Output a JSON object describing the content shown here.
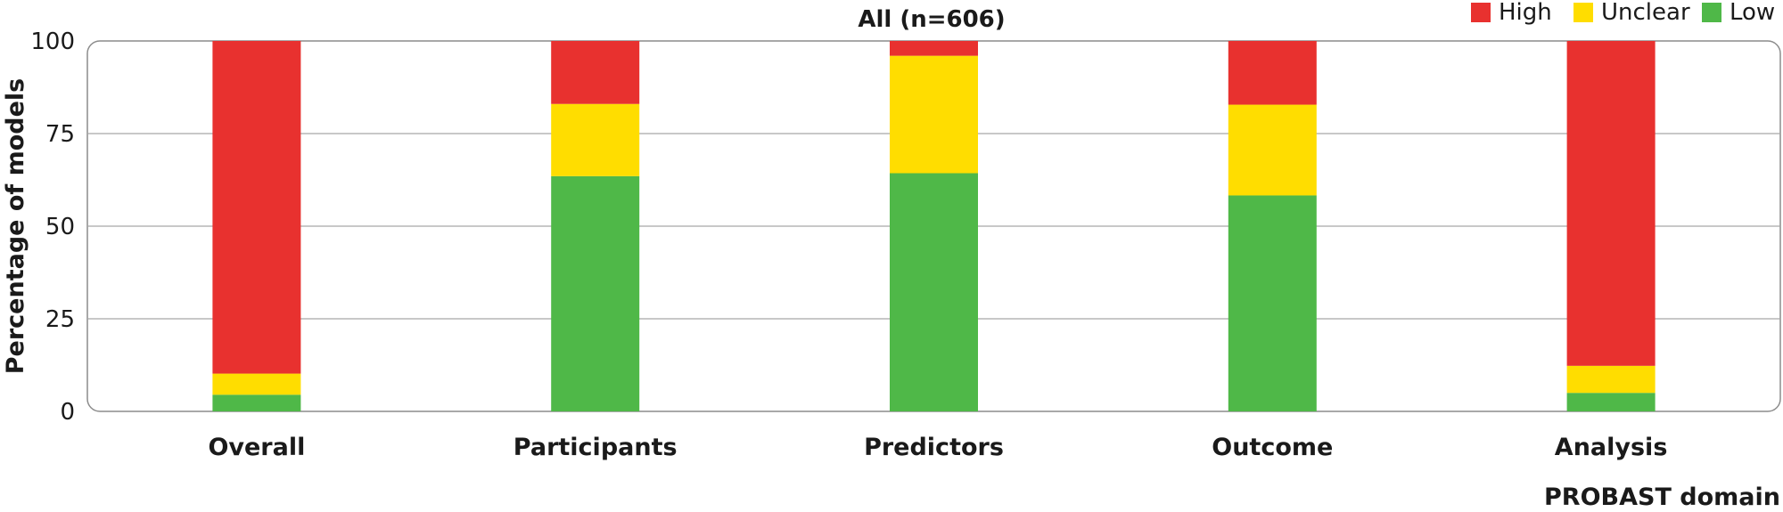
{
  "chart_data": {
    "type": "bar",
    "stacked": true,
    "title": "All (n=606)",
    "xlabel": "PROBAST domain",
    "ylabel": "Percentage of models",
    "categories": [
      "Overall",
      "Participants",
      "Predictors",
      "Outcome",
      "Analysis"
    ],
    "series": [
      {
        "name": "Low",
        "color": "#4fb848",
        "values": [
          4.5,
          63.5,
          64.3,
          58.3,
          5.0
        ]
      },
      {
        "name": "Unclear",
        "color": "#ffdd00",
        "values": [
          5.7,
          19.5,
          31.7,
          24.5,
          7.3
        ]
      },
      {
        "name": "High",
        "color": "#e8312f",
        "values": [
          89.8,
          17.0,
          4.0,
          17.2,
          87.7
        ]
      }
    ],
    "legend_order": [
      "High",
      "Unclear",
      "Low"
    ],
    "legend_position": "top-right",
    "ylim": [
      0,
      100
    ],
    "yticks": [
      0,
      25,
      50,
      75,
      100
    ],
    "grid": true
  }
}
